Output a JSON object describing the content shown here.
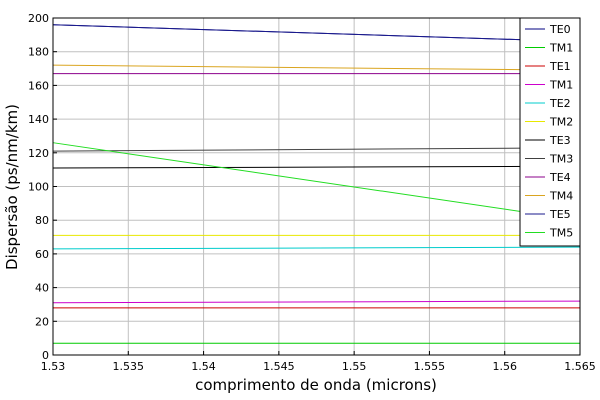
{
  "chart_data": {
    "type": "line",
    "xlabel": "comprimento de onda (microns)",
    "ylabel": "Dispersão (ps/nm/km)",
    "xlim": [
      1.53,
      1.565
    ],
    "ylim": [
      0,
      200
    ],
    "x_ticks": [
      "1.53",
      "1.535",
      "1.54",
      "1.545",
      "1.55",
      "1.555",
      "1.56",
      "1.565"
    ],
    "y_ticks": [
      "0",
      "20",
      "40",
      "60",
      "80",
      "100",
      "120",
      "140",
      "160",
      "180",
      "200"
    ],
    "grid": true,
    "legend_position": "top-right",
    "x": [
      1.53,
      1.565
    ],
    "series": [
      {
        "name": "TE0",
        "color": "#000080",
        "values": [
          196,
          186
        ]
      },
      {
        "name": "TM1",
        "color": "#00cc00",
        "values": [
          7,
          7
        ]
      },
      {
        "name": "TE1",
        "color": "#cc0000",
        "values": [
          28,
          28
        ]
      },
      {
        "name": "TM1",
        "color": "#cc00cc",
        "values": [
          31,
          32
        ]
      },
      {
        "name": "TE2",
        "color": "#00cccc",
        "values": [
          63,
          64
        ]
      },
      {
        "name": "TM2",
        "color": "#e8e800",
        "values": [
          71,
          71
        ]
      },
      {
        "name": "TE3",
        "color": "#000000",
        "values": [
          111,
          112
        ]
      },
      {
        "name": "TM3",
        "color": "#404040",
        "values": [
          121,
          123
        ]
      },
      {
        "name": "TE4",
        "color": "#8b008b",
        "values": [
          167,
          167
        ]
      },
      {
        "name": "TM4",
        "color": "#daa520",
        "values": [
          172,
          169
        ]
      },
      {
        "name": "TE5",
        "color": "#1a1a8c",
        "values": [
          196,
          186
        ]
      },
      {
        "name": "TM5",
        "color": "#22dd22",
        "values": [
          126,
          80
        ]
      }
    ]
  }
}
